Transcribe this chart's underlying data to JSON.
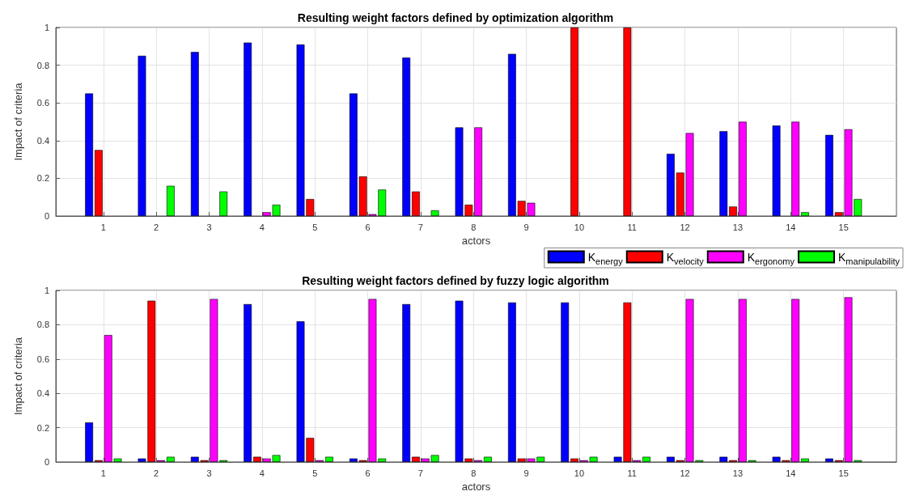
{
  "chart_data": [
    {
      "type": "bar",
      "title": "Resulting weight factors defined by optimization algorithm",
      "xlabel": "actors",
      "ylabel": "Impact of criteria",
      "x": [
        1,
        2,
        3,
        4,
        5,
        6,
        7,
        8,
        9,
        10,
        11,
        12,
        13,
        14,
        15
      ],
      "xlim": [
        0.1,
        16
      ],
      "xticks": [
        1,
        2,
        3,
        4,
        5,
        6,
        7,
        8,
        9,
        10,
        11,
        12,
        13,
        14,
        15
      ],
      "ylim": [
        0,
        1
      ],
      "yticks": [
        0,
        0.2,
        0.4,
        0.6,
        0.8,
        1
      ],
      "grid": true,
      "legend": "bottom right",
      "series": [
        {
          "name": "K$_{energy}$",
          "color": "#0000ff",
          "values": [
            0.65,
            0.85,
            0.87,
            0.92,
            0.91,
            0.65,
            0.84,
            0.47,
            0.86,
            0,
            0,
            0.33,
            0.45,
            0.48,
            0.43
          ]
        },
        {
          "name": "K$_{velocity}$",
          "color": "#ff0000",
          "values": [
            0.35,
            0,
            0,
            0,
            0.09,
            0.21,
            0.13,
            0.06,
            0.08,
            1,
            1,
            0.23,
            0.05,
            0,
            0.02
          ]
        },
        {
          "name": "K$_{ergonomy}$",
          "color": "#ff00ff",
          "values": [
            0,
            0,
            0,
            0.02,
            0,
            0.01,
            0,
            0.47,
            0.07,
            0,
            0,
            0.44,
            0.5,
            0.5,
            0.46
          ]
        },
        {
          "name": "K$_{manipulability}$",
          "color": "#00ff00",
          "values": [
            0,
            0.16,
            0.13,
            0.06,
            0,
            0.14,
            0.03,
            0,
            0,
            0,
            0,
            0,
            0,
            0.02,
            0.09
          ]
        }
      ]
    },
    {
      "type": "bar",
      "title": "Resulting weight factors defined by fuzzy logic algorithm",
      "xlabel": "actors",
      "ylabel": "Impact of criteria",
      "x": [
        1,
        2,
        3,
        4,
        5,
        6,
        7,
        8,
        9,
        10,
        11,
        12,
        13,
        14,
        15
      ],
      "xlim": [
        0.1,
        16
      ],
      "xticks": [
        1,
        2,
        3,
        4,
        5,
        6,
        7,
        8,
        9,
        10,
        11,
        12,
        13,
        14,
        15
      ],
      "ylim": [
        0,
        1
      ],
      "yticks": [
        0,
        0.2,
        0.4,
        0.6,
        0.8,
        1
      ],
      "grid": true,
      "series": [
        {
          "color": "#0000ff",
          "values": [
            0.23,
            0.02,
            0.03,
            0.92,
            0.82,
            0.02,
            0.92,
            0.94,
            0.93,
            0.93,
            0.03,
            0.03,
            0.03,
            0.03,
            0.02
          ]
        },
        {
          "color": "#ff0000",
          "values": [
            0.01,
            0.94,
            0.01,
            0.03,
            0.14,
            0.01,
            0.03,
            0.02,
            0.02,
            0.02,
            0.93,
            0.01,
            0.01,
            0.01,
            0.01
          ]
        },
        {
          "color": "#ff00ff",
          "values": [
            0.74,
            0.01,
            0.95,
            0.02,
            0.01,
            0.95,
            0.02,
            0.01,
            0.02,
            0.01,
            0.01,
            0.95,
            0.95,
            0.95,
            0.96
          ]
        },
        {
          "color": "#00ff00",
          "values": [
            0.02,
            0.03,
            0.01,
            0.04,
            0.03,
            0.02,
            0.04,
            0.03,
            0.03,
            0.03,
            0.03,
            0.01,
            0.01,
            0.02,
            0.01
          ]
        }
      ]
    }
  ]
}
